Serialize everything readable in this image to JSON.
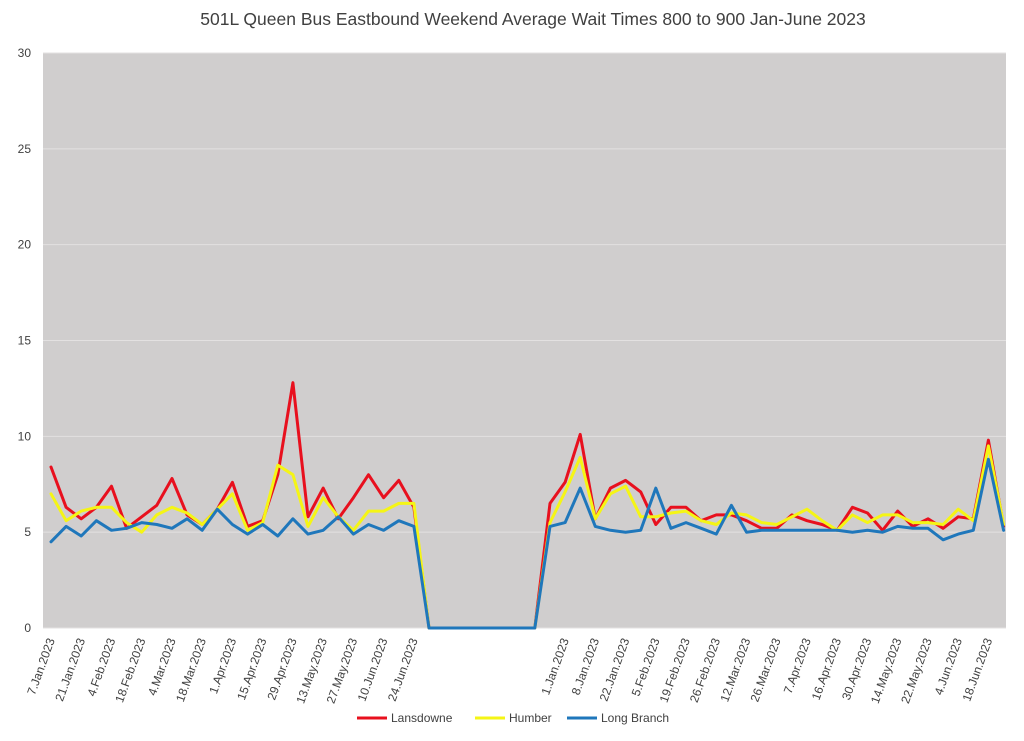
{
  "chart_data": {
    "type": "line",
    "title": "501L Queen Bus Eastbound Weekend Average Wait Times 800 to 900 Jan-June 2023",
    "xlabel": "",
    "ylabel": "",
    "ylim": [
      0,
      30
    ],
    "yticks": [
      "0",
      "5",
      "10",
      "15",
      "20",
      "25",
      "30"
    ],
    "grid": true,
    "legend_position": "bottom",
    "x_tick_labels": [
      {
        "i": 0,
        "label": "7.Jan.2023"
      },
      {
        "i": 2,
        "label": "21.Jan.2023"
      },
      {
        "i": 4,
        "label": "4.Feb.2023"
      },
      {
        "i": 6,
        "label": "18.Feb.2023"
      },
      {
        "i": 8,
        "label": "4.Mar.2023"
      },
      {
        "i": 10,
        "label": "18.Mar.2023"
      },
      {
        "i": 12,
        "label": "1.Apr.2023"
      },
      {
        "i": 14,
        "label": "15.Apr.2023"
      },
      {
        "i": 16,
        "label": "29.Apr.2023"
      },
      {
        "i": 18,
        "label": "13.May.2023"
      },
      {
        "i": 20,
        "label": "27.May.2023"
      },
      {
        "i": 22,
        "label": "10.Jun.2023"
      },
      {
        "i": 24,
        "label": "24.Jun.2023"
      },
      {
        "i": 34,
        "label": "1.Jan.2023"
      },
      {
        "i": 36,
        "label": "8.Jan.2023"
      },
      {
        "i": 38,
        "label": "22.Jan.2023"
      },
      {
        "i": 40,
        "label": "5.Feb.2023"
      },
      {
        "i": 42,
        "label": "19.Feb.2023"
      },
      {
        "i": 44,
        "label": "26.Feb.2023"
      },
      {
        "i": 46,
        "label": "12.Mar.2023"
      },
      {
        "i": 48,
        "label": "26.Mar.2023"
      },
      {
        "i": 50,
        "label": "7.Apr.2023"
      },
      {
        "i": 52,
        "label": "16.Apr.2023"
      },
      {
        "i": 54,
        "label": "30.Apr.2023"
      },
      {
        "i": 56,
        "label": "14.May.2023"
      },
      {
        "i": 58,
        "label": "22.May.2023"
      },
      {
        "i": 60,
        "label": "4.Jun.2023"
      },
      {
        "i": 62,
        "label": "18.Jun.2023"
      }
    ],
    "series": [
      {
        "name": "Lansdowne",
        "color": "#e8101e",
        "values": [
          8.4,
          6.3,
          5.7,
          6.3,
          7.4,
          5.2,
          5.8,
          6.4,
          7.8,
          5.9,
          5.4,
          6.2,
          7.6,
          5.3,
          5.6,
          8.0,
          12.8,
          5.8,
          7.3,
          5.7,
          6.8,
          8.0,
          6.8,
          7.7,
          6.3,
          0,
          0,
          0,
          0,
          0,
          0,
          0,
          0,
          6.5,
          7.6,
          10.1,
          5.7,
          7.3,
          7.7,
          7.1,
          5.4,
          6.3,
          6.3,
          5.6,
          5.9,
          5.9,
          5.6,
          5.2,
          5.2,
          5.9,
          5.6,
          5.4,
          5.1,
          6.3,
          6.0,
          5.1,
          6.1,
          5.3,
          5.7,
          5.2,
          5.8,
          5.7,
          9.8,
          5.3
        ]
      },
      {
        "name": "Humber",
        "color": "#f5f515",
        "values": [
          7.0,
          5.6,
          6.1,
          6.3,
          6.3,
          5.5,
          5.0,
          5.9,
          6.3,
          6.0,
          5.4,
          6.2,
          7.0,
          5.1,
          5.5,
          8.5,
          8.0,
          5.3,
          6.8,
          5.8,
          5.1,
          6.1,
          6.1,
          6.5,
          6.5,
          0,
          0,
          0,
          0,
          0,
          0,
          0,
          0,
          5.5,
          7.1,
          8.9,
          5.7,
          7.0,
          7.4,
          5.8,
          5.8,
          6.0,
          6.1,
          5.6,
          5.4,
          6.0,
          5.9,
          5.5,
          5.4,
          5.8,
          6.2,
          5.6,
          5.1,
          5.9,
          5.5,
          5.9,
          5.9,
          5.5,
          5.5,
          5.4,
          6.2,
          5.6,
          9.5,
          5.4
        ]
      },
      {
        "name": "Long Branch",
        "color": "#1f77bb",
        "values": [
          4.5,
          5.3,
          4.8,
          5.6,
          5.1,
          5.2,
          5.5,
          5.4,
          5.2,
          5.7,
          5.1,
          6.2,
          5.4,
          4.9,
          5.4,
          4.8,
          5.7,
          4.9,
          5.1,
          5.8,
          4.9,
          5.4,
          5.1,
          5.6,
          5.3,
          0,
          0,
          0,
          0,
          0,
          0,
          0,
          0,
          5.3,
          5.5,
          7.3,
          5.3,
          5.1,
          5.0,
          5.1,
          7.3,
          5.2,
          5.5,
          5.2,
          4.9,
          6.4,
          5.0,
          5.1,
          5.1,
          5.1,
          5.1,
          5.1,
          5.1,
          5.0,
          5.1,
          5.0,
          5.3,
          5.2,
          5.2,
          4.6,
          4.9,
          5.1,
          8.8,
          5.1
        ]
      }
    ]
  }
}
